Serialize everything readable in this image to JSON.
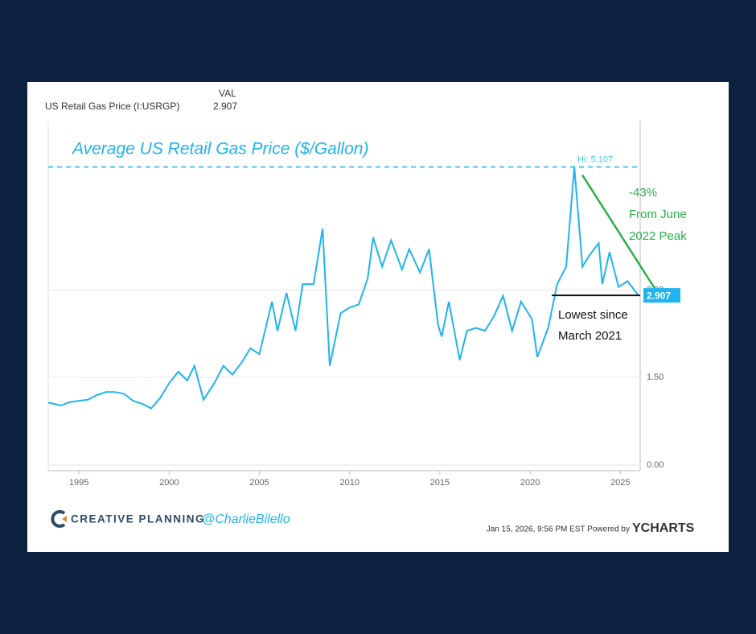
{
  "chart_data": {
    "type": "line",
    "header": {
      "column": "VAL",
      "name": "US Retail Gas Price (I:USRGP)"
    },
    "title": "Average US Retail Gas Price ($/Gallon)",
    "x": [
      1993.3,
      1994,
      1994.5,
      1995,
      1995.5,
      1996,
      1996.5,
      1997,
      1997.5,
      1998,
      1998.5,
      1999,
      1999.5,
      2000,
      2000.5,
      2001,
      2001.4,
      2001.9,
      2002.5,
      2003,
      2003.5,
      2004,
      2004.5,
      2005,
      2005.7,
      2006,
      2006.5,
      2007,
      2007.4,
      2008,
      2008.5,
      2008.9,
      2009.5,
      2010,
      2010.5,
      2011,
      2011.3,
      2011.8,
      2012.3,
      2012.9,
      2013.3,
      2013.9,
      2014.4,
      2014.9,
      2015.1,
      2015.5,
      2016.1,
      2016.5,
      2017,
      2017.5,
      2018,
      2018.5,
      2019,
      2019.5,
      2020.1,
      2020.4,
      2021,
      2021.5,
      2022,
      2022.45,
      2022.9,
      2023.3,
      2023.8,
      2024,
      2024.4,
      2024.9,
      2025.4,
      2026.0
    ],
    "values": [
      1.07,
      1.02,
      1.08,
      1.1,
      1.12,
      1.2,
      1.25,
      1.25,
      1.22,
      1.1,
      1.05,
      0.97,
      1.15,
      1.4,
      1.6,
      1.45,
      1.7,
      1.12,
      1.4,
      1.7,
      1.55,
      1.75,
      2.0,
      1.9,
      2.8,
      2.3,
      2.95,
      2.3,
      3.1,
      3.1,
      4.05,
      1.7,
      2.6,
      2.7,
      2.75,
      3.2,
      3.9,
      3.4,
      3.85,
      3.35,
      3.7,
      3.3,
      3.7,
      2.4,
      2.2,
      2.8,
      1.8,
      2.3,
      2.35,
      2.3,
      2.55,
      2.9,
      2.3,
      2.8,
      2.5,
      1.85,
      2.35,
      3.1,
      3.4,
      5.107,
      3.4,
      3.6,
      3.8,
      3.1,
      3.65,
      3.05,
      3.15,
      2.907
    ],
    "color": "#1fb4ee",
    "xlim": [
      1993.3,
      2026.1
    ],
    "xticks": [
      1995,
      2000,
      2005,
      2010,
      2015,
      2020,
      2025
    ],
    "ylim": [
      0,
      5.9
    ],
    "yticks": [
      {
        "value": 0,
        "label": "0.00"
      },
      {
        "value": 1.5,
        "label": "1.50"
      },
      {
        "value": 3,
        "label": "3.00"
      }
    ],
    "grid": true,
    "annotations": {
      "high": "Hi: 5.107",
      "drop": [
        "-43%",
        "From June",
        "2022 Peak"
      ],
      "low": [
        "Lowest since",
        "March 2021"
      ]
    },
    "footer": {
      "brand": "CREATIVE PLANNING",
      "handle": "@CharlieBilello",
      "timestamp": "Jan 15, 2026, 9:56 PM EST Powered by",
      "source": "YCHARTS"
    }
  }
}
